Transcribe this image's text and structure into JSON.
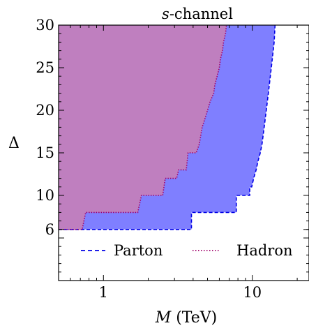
{
  "chart_data": {
    "type": "area",
    "title": "s-channel",
    "title_parts": {
      "italic": "s",
      "rest": "-channel"
    },
    "xlabel": "M (TeV)",
    "xlabel_parts": {
      "italic": "M",
      "rest": " (TeV)"
    },
    "ylabel": "Δ",
    "xscale": "log",
    "xlim": [
      0.5,
      24
    ],
    "ylim": [
      0,
      30
    ],
    "x_tick_labels": [
      {
        "value": 1,
        "label": "1"
      },
      {
        "value": 10,
        "label": "10"
      }
    ],
    "y_tick_labels": [
      {
        "value": 6,
        "label": "6"
      },
      {
        "value": 10,
        "label": "10"
      },
      {
        "value": 15,
        "label": "15"
      },
      {
        "value": 20,
        "label": "20"
      },
      {
        "value": 25,
        "label": "25"
      },
      {
        "value": 30,
        "label": "30"
      }
    ],
    "legend_position": "bottom-center",
    "series": [
      {
        "name": "Parton",
        "line_style": "dashed",
        "line_color": "#0000e6",
        "fill_color": "#7f7fff",
        "boundary": [
          [
            0.5,
            6
          ],
          [
            3.9,
            6
          ],
          [
            3.9,
            8
          ],
          [
            7.8,
            8
          ],
          [
            7.8,
            10
          ],
          [
            9.6,
            10
          ],
          [
            9.6,
            11
          ],
          [
            9.9,
            11
          ],
          [
            10.2,
            12
          ],
          [
            10.6,
            13
          ],
          [
            10.9,
            14
          ],
          [
            11.3,
            15
          ],
          [
            11.6,
            16
          ],
          [
            11.8,
            17
          ],
          [
            12.0,
            18
          ],
          [
            12.2,
            19
          ],
          [
            12.4,
            20
          ],
          [
            12.6,
            21
          ],
          [
            12.8,
            22
          ],
          [
            13.0,
            23
          ],
          [
            13.2,
            24
          ],
          [
            13.4,
            25
          ],
          [
            13.6,
            26
          ],
          [
            13.8,
            27
          ],
          [
            14.0,
            28
          ],
          [
            14.1,
            29
          ],
          [
            14.2,
            30
          ]
        ]
      },
      {
        "name": "Hadron",
        "line_style": "dotted",
        "line_color": "#a0006a",
        "fill_color": "#bf7fbf",
        "boundary": [
          [
            0.5,
            6
          ],
          [
            0.72,
            6
          ],
          [
            0.76,
            8
          ],
          [
            1.7,
            8
          ],
          [
            1.8,
            10
          ],
          [
            2.5,
            10
          ],
          [
            2.6,
            12
          ],
          [
            3.1,
            12
          ],
          [
            3.2,
            13
          ],
          [
            3.6,
            13
          ],
          [
            3.7,
            15
          ],
          [
            4.2,
            15
          ],
          [
            4.4,
            16
          ],
          [
            4.6,
            18
          ],
          [
            4.8,
            19
          ],
          [
            5.0,
            20
          ],
          [
            5.2,
            21
          ],
          [
            5.5,
            22
          ],
          [
            5.6,
            23
          ],
          [
            5.8,
            24
          ],
          [
            6.0,
            25
          ],
          [
            6.1,
            26
          ],
          [
            6.3,
            27
          ],
          [
            6.4,
            28
          ],
          [
            6.6,
            29
          ],
          [
            6.7,
            30
          ]
        ]
      }
    ]
  }
}
